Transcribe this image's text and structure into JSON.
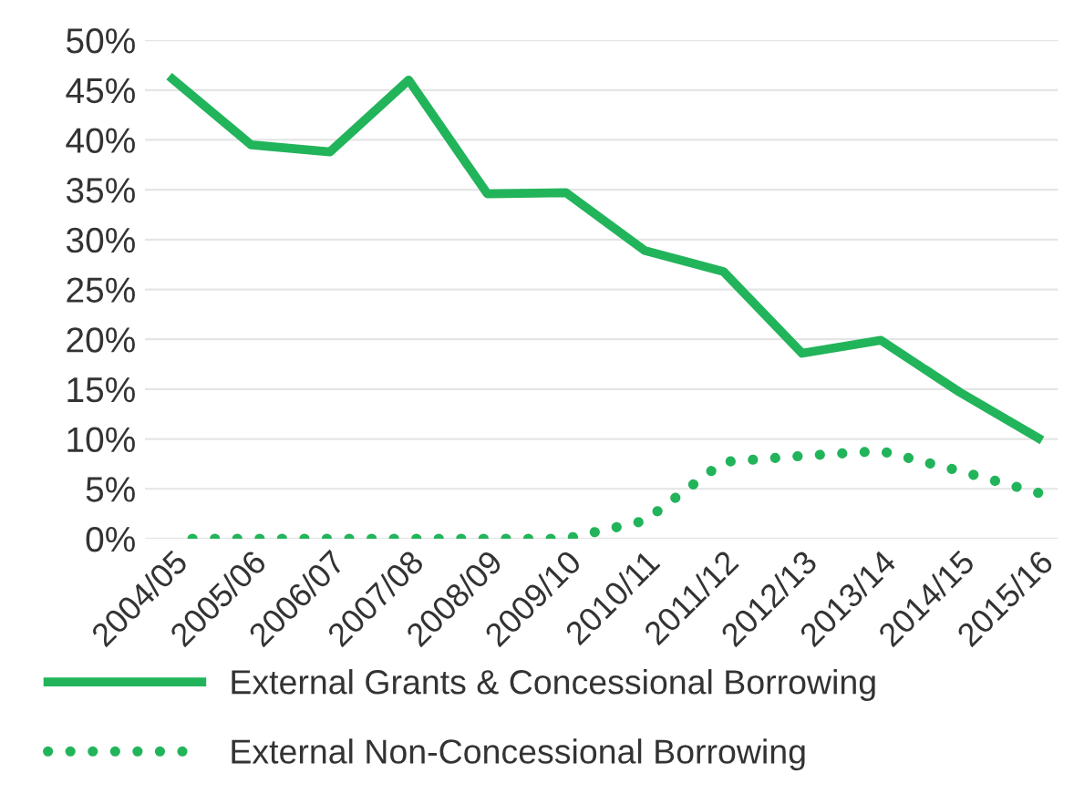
{
  "chart_data": {
    "type": "line",
    "categories": [
      "2004/05",
      "2005/06",
      "2006/07",
      "2007/08",
      "2008/09",
      "2009/10",
      "2010/11",
      "2011/12",
      "2012/13",
      "2013/14",
      "2014/15",
      "2015/16"
    ],
    "series": [
      {
        "name": "External Grants & Concessional Borrowing",
        "color": "#22b45a",
        "line_style": "solid",
        "values": [
          46.1,
          39.5,
          38.8,
          46.0,
          34.6,
          34.7,
          28.9,
          26.8,
          18.6,
          19.9,
          14.7,
          10.1
        ]
      },
      {
        "name": "External Non-Concessional Borrowing",
        "color": "#22b45a",
        "line_style": "dotted",
        "values": [
          0,
          0,
          0,
          0,
          0,
          0,
          1.8,
          7.7,
          8.3,
          8.8,
          6.8,
          4.6
        ]
      }
    ],
    "ylim": [
      0,
      50
    ],
    "yticks": [
      {
        "value": 0,
        "label": "0%"
      },
      {
        "value": 5,
        "label": "5%"
      },
      {
        "value": 10,
        "label": "10%"
      },
      {
        "value": 15,
        "label": "15%"
      },
      {
        "value": 20,
        "label": "20%"
      },
      {
        "value": 25,
        "label": "25%"
      },
      {
        "value": 30,
        "label": "30%"
      },
      {
        "value": 35,
        "label": "35%"
      },
      {
        "value": 40,
        "label": "40%"
      },
      {
        "value": 45,
        "label": "45%"
      },
      {
        "value": 50,
        "label": "50%"
      }
    ],
    "grid": "y",
    "legend": "bottom"
  }
}
